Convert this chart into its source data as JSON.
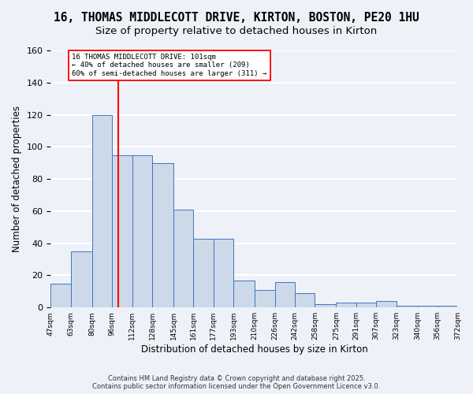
{
  "title_line1": "16, THOMAS MIDDLECOTT DRIVE, KIRTON, BOSTON, PE20 1HU",
  "title_line2": "Size of property relative to detached houses in Kirton",
  "xlabel": "Distribution of detached houses by size in Kirton",
  "ylabel": "Number of detached properties",
  "bin_edges": [
    47,
    63,
    80,
    96,
    112,
    128,
    145,
    161,
    177,
    193,
    210,
    226,
    242,
    258,
    275,
    291,
    307,
    323,
    340,
    356,
    372
  ],
  "categories": [
    "47sqm",
    "63sqm",
    "80sqm",
    "96sqm",
    "112sqm",
    "128sqm",
    "145sqm",
    "161sqm",
    "177sqm",
    "193sqm",
    "210sqm",
    "226sqm",
    "242sqm",
    "258sqm",
    "275sqm",
    "291sqm",
    "307sqm",
    "323sqm",
    "340sqm",
    "356sqm",
    "372sqm"
  ],
  "heights": [
    15,
    35,
    120,
    95,
    95,
    90,
    61,
    43,
    43,
    17,
    11,
    16,
    9,
    2,
    3,
    3,
    4,
    1,
    1,
    1
  ],
  "property_sqm": 101,
  "bar_color": "#ccd9e8",
  "bar_edge_color": "#4472c4",
  "vline_color": "red",
  "ylim": [
    0,
    160
  ],
  "yticks": [
    0,
    20,
    40,
    60,
    80,
    100,
    120,
    140,
    160
  ],
  "annotation_text": "16 THOMAS MIDDLECOTT DRIVE: 101sqm\n← 40% of detached houses are smaller (209)\n60% of semi-detached houses are larger (311) →",
  "footer_line1": "Contains HM Land Registry data © Crown copyright and database right 2025.",
  "footer_line2": "Contains public sector information licensed under the Open Government Licence v3.0.",
  "bg_color": "#eef2f8",
  "grid_color": "white",
  "title_fontsize": 10.5,
  "subtitle_fontsize": 9.5
}
